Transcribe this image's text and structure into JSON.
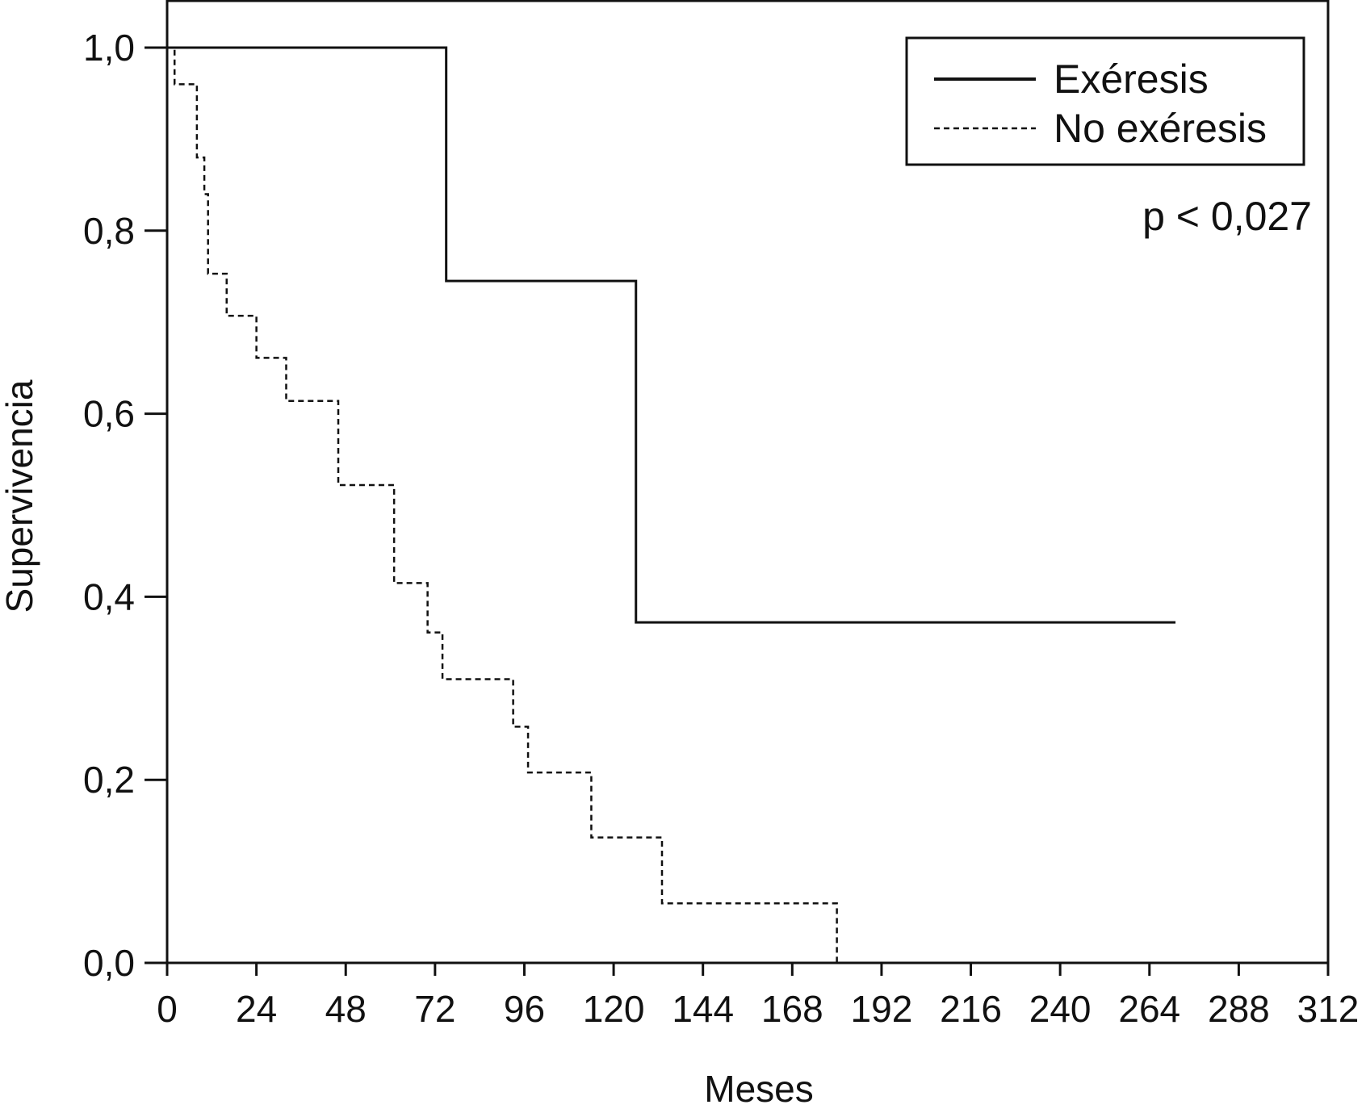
{
  "chart_data": {
    "type": "line",
    "step": true,
    "title": "",
    "xlabel": "Meses",
    "ylabel": "Supervivencia",
    "xlim": [
      0,
      312
    ],
    "ylim": [
      0,
      1
    ],
    "x_ticks": [
      0,
      24,
      48,
      72,
      96,
      120,
      144,
      168,
      192,
      216,
      240,
      264,
      288,
      312
    ],
    "y_ticks": [
      0.0,
      0.2,
      0.4,
      0.6,
      0.8,
      1.0
    ],
    "x_tick_labels": [
      "0",
      "24",
      "48",
      "72",
      "96",
      "120",
      "144",
      "168",
      "192",
      "216",
      "240",
      "264",
      "288",
      "312"
    ],
    "y_tick_labels": [
      "0,0",
      "0,2",
      "0,4",
      "0,6",
      "0,8",
      "1,0"
    ],
    "legend_position": "top-right",
    "annotation": "p < 0,027",
    "grid": false,
    "series": [
      {
        "name": "Exéresis",
        "line_style": "solid",
        "color": "#111111",
        "x": [
          0,
          75,
          126,
          271
        ],
        "y": [
          1.0,
          0.745,
          0.372,
          0.372
        ]
      },
      {
        "name": "No exéresis",
        "line_style": "dashed",
        "color": "#111111",
        "x": [
          0,
          2,
          8,
          10,
          11,
          16,
          24,
          32,
          46,
          61,
          70,
          74,
          93,
          97,
          114,
          133,
          180
        ],
        "y": [
          1.0,
          0.96,
          0.88,
          0.84,
          0.753,
          0.707,
          0.661,
          0.614,
          0.522,
          0.415,
          0.361,
          0.31,
          0.258,
          0.208,
          0.137,
          0.065,
          0.0
        ]
      }
    ]
  }
}
